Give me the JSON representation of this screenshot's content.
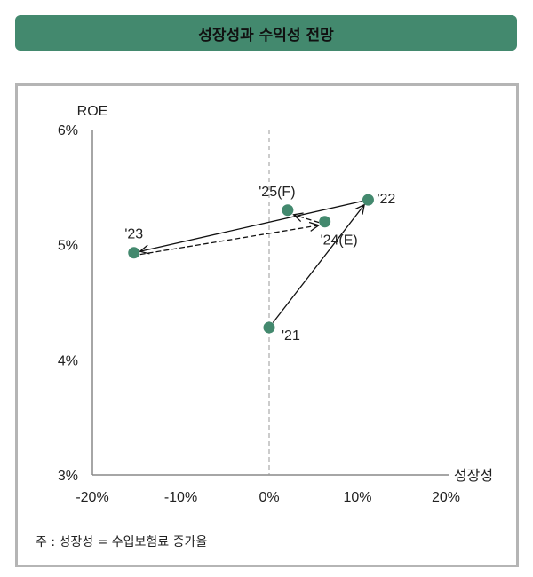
{
  "title": "성장성과 수익성 전망",
  "note": "주 : 성장성 = 수입보험료 증가율",
  "colors": {
    "title_bg": "#43896e",
    "marker": "#43896e",
    "frame": "#b5b5b5",
    "axis": "#888888"
  },
  "chart_data": {
    "type": "scatter",
    "title": "성장성과 수익성 전망",
    "xlabel": "성장성",
    "ylabel": "ROE",
    "xlim": [
      -20,
      20
    ],
    "ylim": [
      3,
      6
    ],
    "x_ticks": [
      "-20%",
      "-10%",
      "0%",
      "10%",
      "20%"
    ],
    "y_ticks": [
      "6%",
      "5%",
      "4%",
      "3%"
    ],
    "grid": false,
    "reference_line": {
      "x": 0,
      "style": "dashed"
    },
    "points": [
      {
        "label": "'21",
        "x": 0.0,
        "y": 4.28
      },
      {
        "label": "'22",
        "x": 11.2,
        "y": 5.39
      },
      {
        "label": "'23",
        "x": -15.3,
        "y": 4.93
      },
      {
        "label": "'24(E)",
        "x": 6.3,
        "y": 5.2
      },
      {
        "label": "'25(F)",
        "x": 2.1,
        "y": 5.3
      }
    ],
    "arrows": [
      {
        "from": "'21",
        "to": "'22",
        "style": "solid"
      },
      {
        "from": "'22",
        "to": "'23",
        "style": "solid"
      },
      {
        "from": "'23",
        "to": "'24(E)",
        "style": "dashed"
      },
      {
        "from": "'24(E)",
        "to": "'25(F)",
        "style": "dashed"
      }
    ],
    "note": "주 : 성장성 = 수입보험료 증가율"
  }
}
